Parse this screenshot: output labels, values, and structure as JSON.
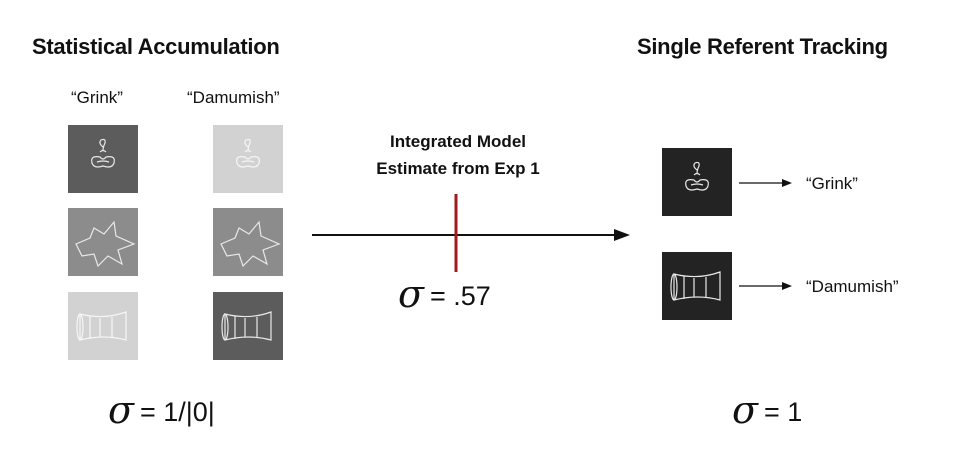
{
  "left": {
    "heading": "Statistical Accumulation",
    "col_labels": [
      "“Grink”",
      "“Damumish”"
    ],
    "formula": {
      "symbol": "σ",
      "text": "= 1/|0|"
    }
  },
  "middle": {
    "label_line1": "Integrated Model",
    "label_line2": "Estimate from Exp 1",
    "formula": {
      "symbol": "σ",
      "text": "= .57"
    },
    "marker_color": "#a01c1c"
  },
  "right": {
    "heading": "Single Referent Tracking",
    "labels": [
      "“Grink”",
      "“Damumish”"
    ],
    "formula": {
      "symbol": "σ",
      "text": "= 1"
    }
  },
  "tiles": {
    "left_col1": [
      "#5c5c5c",
      "#8c8c8c",
      "#d2d2d2"
    ],
    "left_col2": [
      "#d2d2d2",
      "#8c8c8c",
      "#5c5c5c"
    ],
    "right": [
      "#232323",
      "#232323"
    ]
  },
  "icons": [
    "knot-object-icon",
    "star-blob-object-icon",
    "barrel-object-icon"
  ]
}
